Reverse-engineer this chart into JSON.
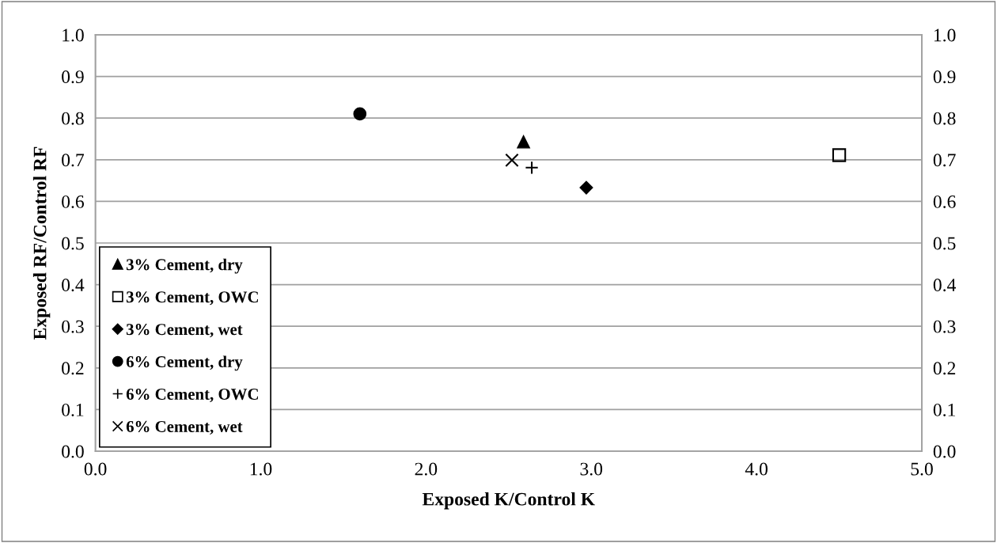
{
  "chart_data": {
    "type": "scatter",
    "xlabel": "Exposed K/Control K",
    "ylabel": "Exposed RF/Control RF",
    "xlim": [
      0,
      5
    ],
    "xticks": [
      {
        "value": 0,
        "label": "0.0"
      },
      {
        "value": 1,
        "label": "1.0"
      },
      {
        "value": 2,
        "label": "2.0"
      },
      {
        "value": 3,
        "label": "3.0"
      },
      {
        "value": 4,
        "label": "4.0"
      },
      {
        "value": 5,
        "label": "5.0"
      }
    ],
    "ylim": [
      0,
      1
    ],
    "yticks": [
      {
        "value": 0,
        "label": "0.0"
      },
      {
        "value": 0.1,
        "label": "0.1"
      },
      {
        "value": 0.2,
        "label": "0.2"
      },
      {
        "value": 0.3,
        "label": "0.3"
      },
      {
        "value": 0.4,
        "label": "0.4"
      },
      {
        "value": 0.5,
        "label": "0.5"
      },
      {
        "value": 0.6,
        "label": "0.6"
      },
      {
        "value": 0.7,
        "label": "0.7"
      },
      {
        "value": 0.8,
        "label": "0.8"
      },
      {
        "value": 0.9,
        "label": "0.9"
      },
      {
        "value": 1,
        "label": "1.0"
      }
    ],
    "y2lim": [
      0,
      1
    ],
    "y2ticks": [
      {
        "value": 0,
        "label": "0.0"
      },
      {
        "value": 0.1,
        "label": "0.1"
      },
      {
        "value": 0.2,
        "label": "0.2"
      },
      {
        "value": 0.3,
        "label": "0.3"
      },
      {
        "value": 0.4,
        "label": "0.4"
      },
      {
        "value": 0.5,
        "label": "0.5"
      },
      {
        "value": 0.6,
        "label": "0.6"
      },
      {
        "value": 0.7,
        "label": "0.7"
      },
      {
        "value": 0.8,
        "label": "0.8"
      },
      {
        "value": 0.9,
        "label": "0.9"
      },
      {
        "value": 1,
        "label": "1.0"
      }
    ],
    "grid": "y",
    "legend": "left",
    "series": [
      {
        "name": "3% Cement, dry",
        "color": "#000000",
        "marker": "triangle",
        "x": [
          2.59
        ],
        "values": [
          0.743
        ]
      },
      {
        "name": "3% Cement, OWC",
        "color": "#000000",
        "marker": "square",
        "x": [
          4.5
        ],
        "values": [
          0.711
        ]
      },
      {
        "name": "3% Cement, wet",
        "color": "#000000",
        "marker": "diamond",
        "x": [
          2.97
        ],
        "values": [
          0.633
        ]
      },
      {
        "name": "6% Cement, dry",
        "color": "#000000",
        "marker": "circle",
        "x": [
          1.6
        ],
        "values": [
          0.81
        ]
      },
      {
        "name": "6% Cement, OWC",
        "color": "#000000",
        "marker": "plus",
        "x": [
          2.64
        ],
        "values": [
          0.681
        ]
      },
      {
        "name": "6% Cement, wet",
        "color": "#000000",
        "marker": "cross",
        "x": [
          2.52
        ],
        "values": [
          0.699
        ]
      }
    ]
  }
}
